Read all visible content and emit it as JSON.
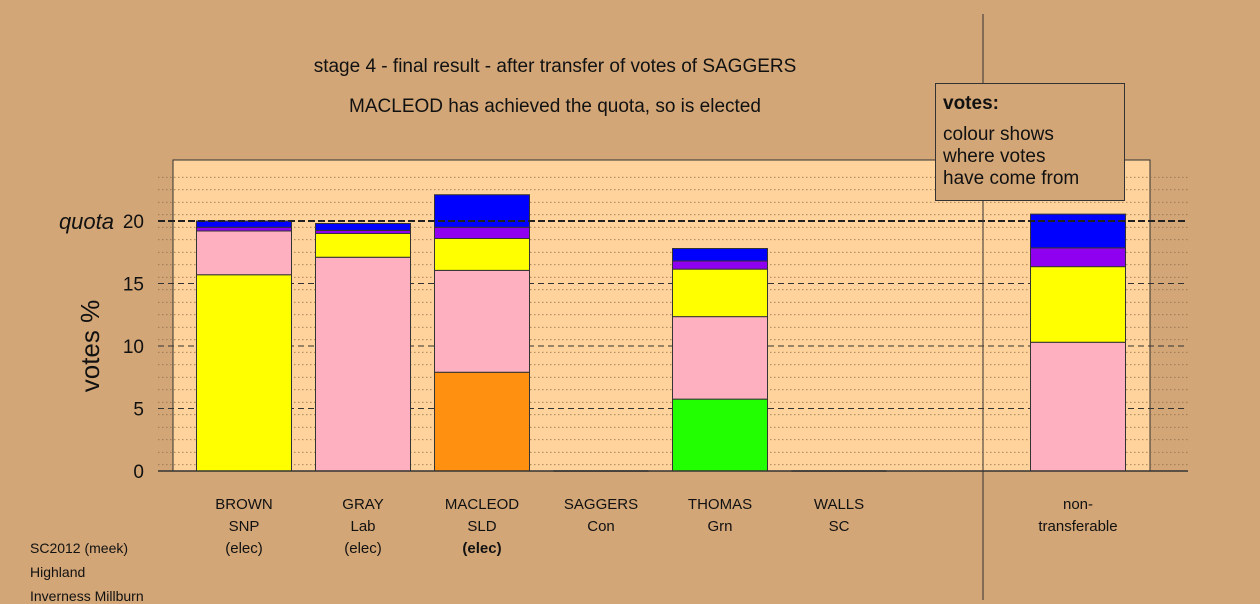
{
  "title_line1": "stage 4 - final result - after transfer of votes of SAGGERS",
  "title_line2": "MACLEOD has achieved the quota, so is elected",
  "legend": {
    "heading": "votes:",
    "lines": [
      "colour shows",
      "where votes",
      "have come from"
    ]
  },
  "footer": [
    "SC2012 (meek)",
    "Highland",
    "Inverness Millburn"
  ],
  "chart_data": {
    "type": "bar",
    "stacked": true,
    "ylabel": "votes %",
    "ylim": [
      0,
      25
    ],
    "yticks": [
      0,
      5,
      10,
      15,
      20
    ],
    "quota": {
      "label": "quota",
      "value": 20
    },
    "grid": true,
    "colors": {
      "SNP": "#FFFF00",
      "Lab": "#FFB0C0",
      "SLD": "#FF9010",
      "Con": "#0000FF",
      "Grn": "#22FF00",
      "SC": "#9000F0"
    },
    "categories": [
      {
        "lines": [
          "BROWN",
          "SNP",
          "(elec)"
        ],
        "bold_last": false
      },
      {
        "lines": [
          "GRAY",
          "Lab",
          "(elec)"
        ],
        "bold_last": false
      },
      {
        "lines": [
          "MACLEOD",
          "SLD",
          "(elec)"
        ],
        "bold_last": true
      },
      {
        "lines": [
          "SAGGERS",
          "Con"
        ],
        "bold_last": false
      },
      {
        "lines": [
          "THOMAS",
          "Grn"
        ],
        "bold_last": false
      },
      {
        "lines": [
          "WALLS",
          "SC"
        ],
        "bold_last": false
      },
      {
        "lines": [
          "non-",
          "transferable"
        ],
        "bold_last": false,
        "separated": true
      }
    ],
    "stacks": [
      [
        {
          "from": "SNP",
          "value": 15.7
        },
        {
          "from": "Lab",
          "value": 3.5
        },
        {
          "from": "SC",
          "value": 0.3
        },
        {
          "from": "Con",
          "value": 0.5
        }
      ],
      [
        {
          "from": "Lab",
          "value": 17.1
        },
        {
          "from": "SNP",
          "value": 1.9
        },
        {
          "from": "SC",
          "value": 0.25
        },
        {
          "from": "Con",
          "value": 0.55
        }
      ],
      [
        {
          "from": "SLD",
          "value": 7.9
        },
        {
          "from": "Lab",
          "value": 8.15
        },
        {
          "from": "SNP",
          "value": 2.55
        },
        {
          "from": "SC",
          "value": 0.9
        },
        {
          "from": "Con",
          "value": 2.6
        }
      ],
      [],
      [
        {
          "from": "Grn",
          "value": 5.75
        },
        {
          "from": "Lab",
          "value": 6.6
        },
        {
          "from": "SNP",
          "value": 3.8
        },
        {
          "from": "SC",
          "value": 0.65
        },
        {
          "from": "Con",
          "value": 1.0
        }
      ],
      [],
      [
        {
          "from": "Lab",
          "value": 10.3
        },
        {
          "from": "SNP",
          "value": 6.05
        },
        {
          "from": "SC",
          "value": 1.5
        },
        {
          "from": "Con",
          "value": 2.7
        }
      ]
    ]
  }
}
